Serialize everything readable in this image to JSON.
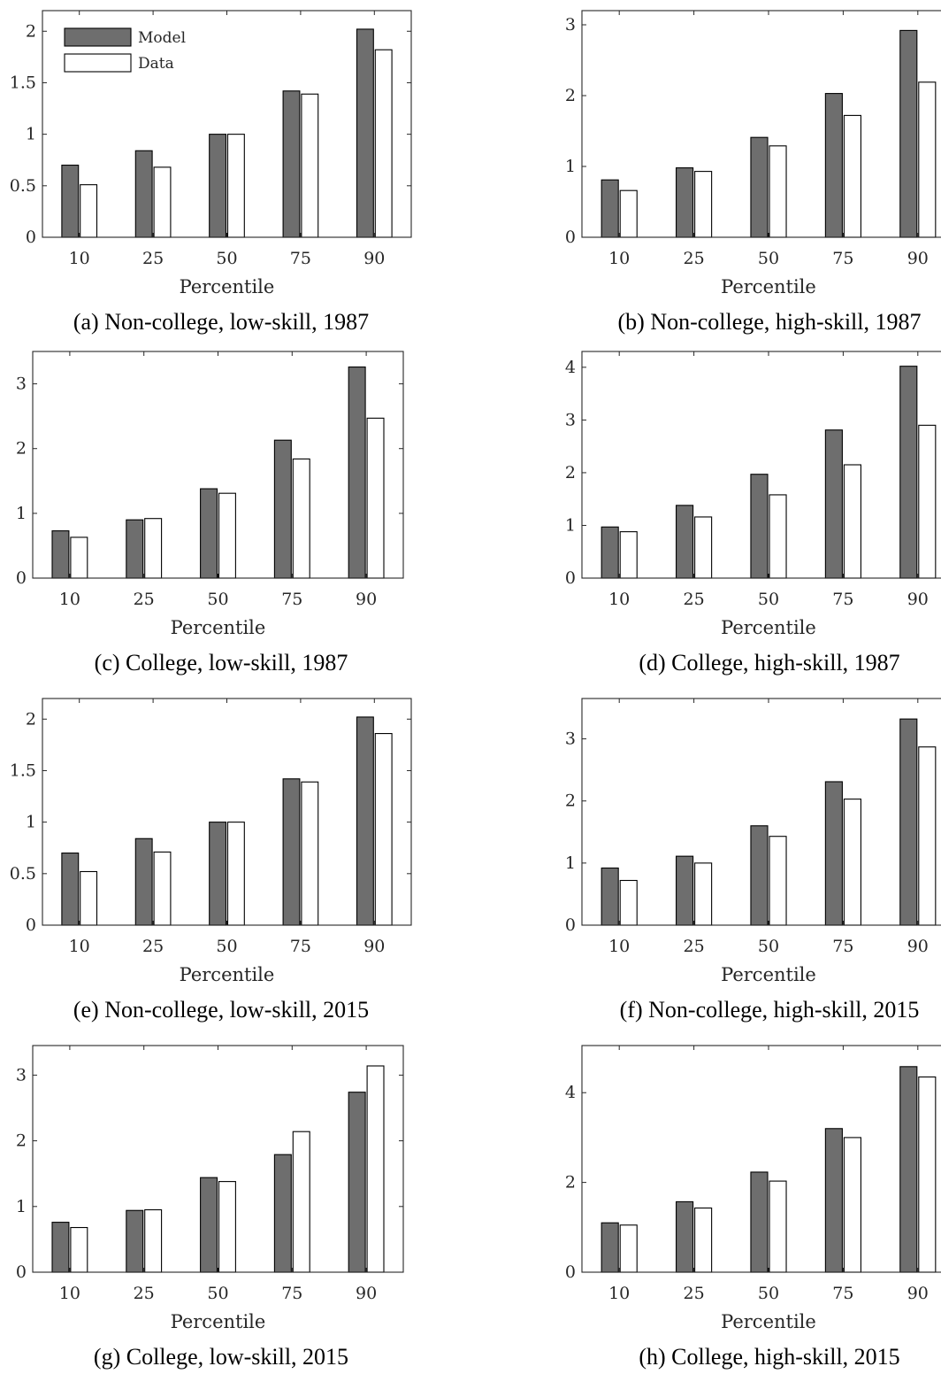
{
  "legend": {
    "model": "Model",
    "data": "Data"
  },
  "colors": {
    "model": "#6e6e6e",
    "data": "#ffffff",
    "outline": "#000000",
    "axis": "#262626"
  },
  "chart_data": [
    {
      "type": "bar",
      "caption": "(a) Non-college, low-skill, 1987",
      "categories": [
        "10",
        "25",
        "50",
        "75",
        "90"
      ],
      "series": [
        {
          "name": "Model",
          "values": [
            0.7,
            0.84,
            1.0,
            1.42,
            2.02
          ]
        },
        {
          "name": "Data",
          "values": [
            0.51,
            0.68,
            1.0,
            1.39,
            1.82
          ]
        }
      ],
      "xlabel": "Percentile",
      "ylabel": "",
      "ylim": [
        0,
        2.2
      ],
      "yticks": [
        0,
        0.5,
        1,
        1.5,
        2
      ],
      "ytick_labels": [
        "0",
        "0.5",
        "1",
        "1.5",
        "2"
      ],
      "legend_placement": "top-left",
      "grid": false
    },
    {
      "type": "bar",
      "caption": "(b) Non-college, high-skill, 1987",
      "categories": [
        "10",
        "25",
        "50",
        "75",
        "90"
      ],
      "series": [
        {
          "name": "Model",
          "values": [
            0.81,
            0.98,
            1.41,
            2.03,
            2.92
          ]
        },
        {
          "name": "Data",
          "values": [
            0.66,
            0.93,
            1.29,
            1.72,
            2.19
          ]
        }
      ],
      "xlabel": "Percentile",
      "ylabel": "",
      "ylim": [
        0,
        3.2
      ],
      "yticks": [
        0,
        1,
        2,
        3
      ],
      "ytick_labels": [
        "0",
        "1",
        "2",
        "3"
      ],
      "grid": false
    },
    {
      "type": "bar",
      "caption": "(c) College, low-skill, 1987",
      "categories": [
        "10",
        "25",
        "50",
        "75",
        "90"
      ],
      "series": [
        {
          "name": "Model",
          "values": [
            0.73,
            0.9,
            1.38,
            2.13,
            3.26
          ]
        },
        {
          "name": "Data",
          "values": [
            0.63,
            0.92,
            1.31,
            1.84,
            2.47
          ]
        }
      ],
      "xlabel": "Percentile",
      "ylabel": "",
      "ylim": [
        0,
        3.5
      ],
      "yticks": [
        0,
        1,
        2,
        3
      ],
      "ytick_labels": [
        "0",
        "1",
        "2",
        "3"
      ],
      "grid": false
    },
    {
      "type": "bar",
      "caption": "(d) College, high-skill, 1987",
      "categories": [
        "10",
        "25",
        "50",
        "75",
        "90"
      ],
      "series": [
        {
          "name": "Model",
          "values": [
            0.97,
            1.38,
            1.97,
            2.81,
            4.02
          ]
        },
        {
          "name": "Data",
          "values": [
            0.88,
            1.16,
            1.58,
            2.15,
            2.9
          ]
        }
      ],
      "xlabel": "Percentile",
      "ylabel": "",
      "ylim": [
        0,
        4.3
      ],
      "yticks": [
        0,
        1,
        2,
        3,
        4
      ],
      "ytick_labels": [
        "0",
        "1",
        "2",
        "3",
        "4"
      ],
      "grid": false
    },
    {
      "type": "bar",
      "caption": "(e) Non-college, low-skill, 2015",
      "categories": [
        "10",
        "25",
        "50",
        "75",
        "90"
      ],
      "series": [
        {
          "name": "Model",
          "values": [
            0.7,
            0.84,
            1.0,
            1.42,
            2.02
          ]
        },
        {
          "name": "Data",
          "values": [
            0.52,
            0.71,
            1.0,
            1.39,
            1.86
          ]
        }
      ],
      "xlabel": "Percentile",
      "ylabel": "",
      "ylim": [
        0,
        2.2
      ],
      "yticks": [
        0,
        0.5,
        1,
        1.5,
        2
      ],
      "ytick_labels": [
        "0",
        "0.5",
        "1",
        "1.5",
        "2"
      ],
      "grid": false
    },
    {
      "type": "bar",
      "caption": "(f) Non-college, high-skill, 2015",
      "categories": [
        "10",
        "25",
        "50",
        "75",
        "90"
      ],
      "series": [
        {
          "name": "Model",
          "values": [
            0.92,
            1.11,
            1.6,
            2.31,
            3.32
          ]
        },
        {
          "name": "Data",
          "values": [
            0.72,
            1.0,
            1.43,
            2.03,
            2.87
          ]
        }
      ],
      "xlabel": "Percentile",
      "ylabel": "",
      "ylim": [
        0,
        3.65
      ],
      "yticks": [
        0,
        1,
        2,
        3
      ],
      "ytick_labels": [
        "0",
        "1",
        "2",
        "3"
      ],
      "grid": false
    },
    {
      "type": "bar",
      "caption": "(g) College, low-skill, 2015",
      "categories": [
        "10",
        "25",
        "50",
        "75",
        "90"
      ],
      "series": [
        {
          "name": "Model",
          "values": [
            0.76,
            0.94,
            1.44,
            1.79,
            2.74
          ]
        },
        {
          "name": "Data",
          "values": [
            0.68,
            0.95,
            1.38,
            2.14,
            3.14
          ]
        }
      ],
      "xlabel": "Percentile",
      "ylabel": "",
      "ylim": [
        0,
        3.45
      ],
      "yticks": [
        0,
        1,
        2,
        3
      ],
      "ytick_labels": [
        "0",
        "1",
        "2",
        "3"
      ],
      "grid": false
    },
    {
      "type": "bar",
      "caption": "(h) College, high-skill, 2015",
      "categories": [
        "10",
        "25",
        "50",
        "75",
        "90"
      ],
      "series": [
        {
          "name": "Model",
          "values": [
            1.1,
            1.57,
            2.23,
            3.2,
            4.58
          ]
        },
        {
          "name": "Data",
          "values": [
            1.05,
            1.43,
            2.03,
            3.0,
            4.35
          ]
        }
      ],
      "xlabel": "Percentile",
      "ylabel": "",
      "ylim": [
        0,
        5.05
      ],
      "yticks": [
        0,
        2,
        4
      ],
      "ytick_labels": [
        "0",
        "2",
        "4"
      ],
      "grid": false
    }
  ]
}
